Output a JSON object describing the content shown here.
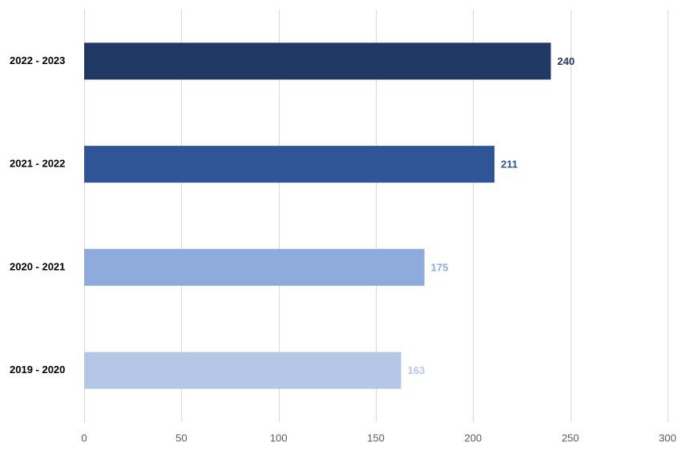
{
  "chart_data": {
    "type": "bar",
    "orientation": "horizontal",
    "categories": [
      "2022 - 2023",
      "2021 - 2022",
      "2020 - 2021",
      "2019 - 2020"
    ],
    "values": [
      240,
      211,
      175,
      163
    ],
    "data_labels": [
      "240",
      "211",
      "175",
      "163"
    ],
    "bar_colors": [
      "#1f3864",
      "#2f5597",
      "#8faadc",
      "#b4c7e7"
    ],
    "xlim": [
      0,
      300
    ],
    "x_ticks": [
      0,
      50,
      100,
      150,
      200,
      250,
      300
    ],
    "x_tick_labels": [
      "0",
      "50",
      "100",
      "150",
      "200",
      "250",
      "300"
    ],
    "grid": "vertical",
    "legend": "none",
    "title": "",
    "xlabel": "",
    "ylabel": ""
  }
}
